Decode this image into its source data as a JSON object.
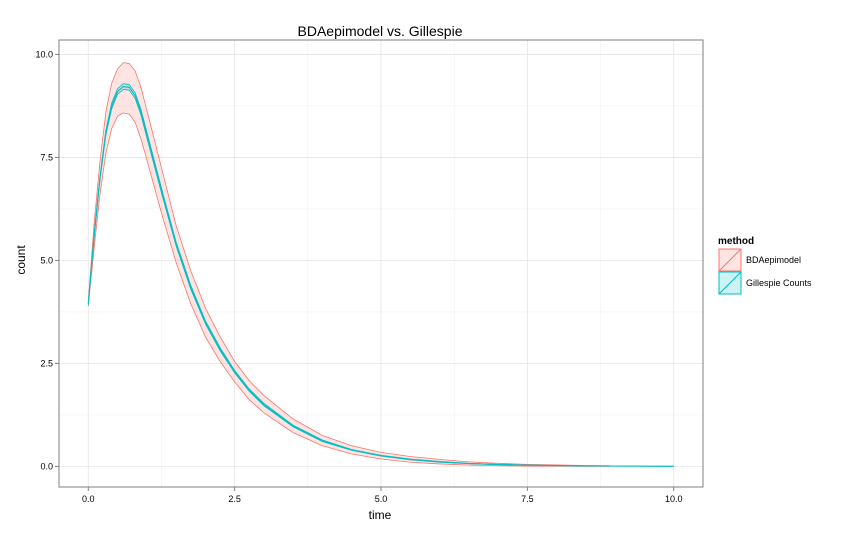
{
  "chart_data": {
    "type": "line",
    "title": "BDAepimodel vs. Gillespie",
    "xlabel": "time",
    "ylabel": "count",
    "xlim": [
      -0.5,
      10.5
    ],
    "ylim": [
      -0.5,
      10.35
    ],
    "x_ticks": [
      0,
      2.5,
      5,
      7.5,
      10
    ],
    "x_tick_labels": [
      "0.0",
      "2.5",
      "5.0",
      "7.5",
      "10.0"
    ],
    "y_ticks": [
      0,
      2.5,
      5,
      7.5,
      10
    ],
    "y_tick_labels": [
      "0.0",
      "2.5",
      "5.0",
      "7.5",
      "10.0"
    ],
    "grid": true,
    "legend": {
      "title": "method",
      "position": "right"
    },
    "series": [
      {
        "name": "BDAepimodel",
        "color": "#F8766D",
        "fill": "#F8766D",
        "x": [
          0,
          0.1,
          0.2,
          0.3,
          0.4,
          0.5,
          0.6,
          0.7,
          0.8,
          0.9,
          1.0,
          1.25,
          1.5,
          1.75,
          2.0,
          2.25,
          2.5,
          2.75,
          3.0,
          3.5,
          4.0,
          4.5,
          5.0,
          5.5,
          6.0,
          6.5,
          7.0,
          7.5,
          8.0,
          8.5,
          8.9
        ],
        "mean": [
          3.95,
          5.6,
          7.0,
          8.1,
          8.75,
          9.1,
          9.22,
          9.2,
          9.0,
          8.6,
          8.05,
          6.7,
          5.4,
          4.35,
          3.5,
          2.85,
          2.3,
          1.85,
          1.5,
          0.98,
          0.62,
          0.4,
          0.26,
          0.17,
          0.11,
          0.07,
          0.045,
          0.03,
          0.02,
          0.012,
          0.01
        ],
        "lower": [
          3.9,
          5.3,
          6.6,
          7.6,
          8.2,
          8.5,
          8.58,
          8.55,
          8.35,
          7.95,
          7.45,
          6.15,
          4.95,
          3.95,
          3.15,
          2.55,
          2.05,
          1.62,
          1.3,
          0.82,
          0.5,
          0.3,
          0.18,
          0.1,
          0.06,
          0.03,
          0.015,
          0.008,
          0.004,
          0.002,
          0.001
        ],
        "upper": [
          4.0,
          5.9,
          7.4,
          8.6,
          9.3,
          9.65,
          9.8,
          9.78,
          9.6,
          9.2,
          8.65,
          7.25,
          5.85,
          4.75,
          3.85,
          3.15,
          2.55,
          2.08,
          1.72,
          1.15,
          0.75,
          0.5,
          0.34,
          0.24,
          0.17,
          0.11,
          0.075,
          0.05,
          0.035,
          0.022,
          0.018
        ]
      },
      {
        "name": "Gillespie Counts",
        "color": "#00BFC4",
        "fill": "#00BFC4",
        "x": [
          0,
          0.1,
          0.2,
          0.3,
          0.4,
          0.5,
          0.6,
          0.7,
          0.8,
          0.9,
          1.0,
          1.25,
          1.5,
          1.75,
          2.0,
          2.25,
          2.5,
          2.75,
          3.0,
          3.5,
          4.0,
          4.5,
          5.0,
          5.5,
          6.0,
          6.5,
          7.0,
          7.5,
          8.0,
          8.5,
          9.0,
          9.5,
          10.0
        ],
        "mean": [
          3.95,
          5.6,
          7.0,
          8.1,
          8.75,
          9.1,
          9.22,
          9.2,
          9.0,
          8.6,
          8.05,
          6.7,
          5.4,
          4.35,
          3.5,
          2.85,
          2.3,
          1.85,
          1.5,
          0.98,
          0.62,
          0.4,
          0.26,
          0.17,
          0.11,
          0.07,
          0.045,
          0.03,
          0.02,
          0.012,
          0.008,
          0.005,
          0.003
        ],
        "lower": [
          3.9,
          5.55,
          6.95,
          8.04,
          8.68,
          9.03,
          9.15,
          9.13,
          8.93,
          8.53,
          7.98,
          6.64,
          5.35,
          4.3,
          3.46,
          2.81,
          2.27,
          1.82,
          1.47,
          0.96,
          0.6,
          0.39,
          0.25,
          0.16,
          0.1,
          0.065,
          0.04,
          0.027,
          0.017,
          0.01,
          0.006,
          0.004,
          0.002
        ],
        "upper": [
          4.0,
          5.65,
          7.05,
          8.16,
          8.82,
          9.17,
          9.29,
          9.27,
          9.07,
          8.67,
          8.12,
          6.76,
          5.45,
          4.4,
          3.54,
          2.89,
          2.33,
          1.88,
          1.53,
          1.0,
          0.64,
          0.41,
          0.27,
          0.18,
          0.12,
          0.075,
          0.05,
          0.033,
          0.023,
          0.014,
          0.01,
          0.006,
          0.004
        ]
      }
    ]
  }
}
